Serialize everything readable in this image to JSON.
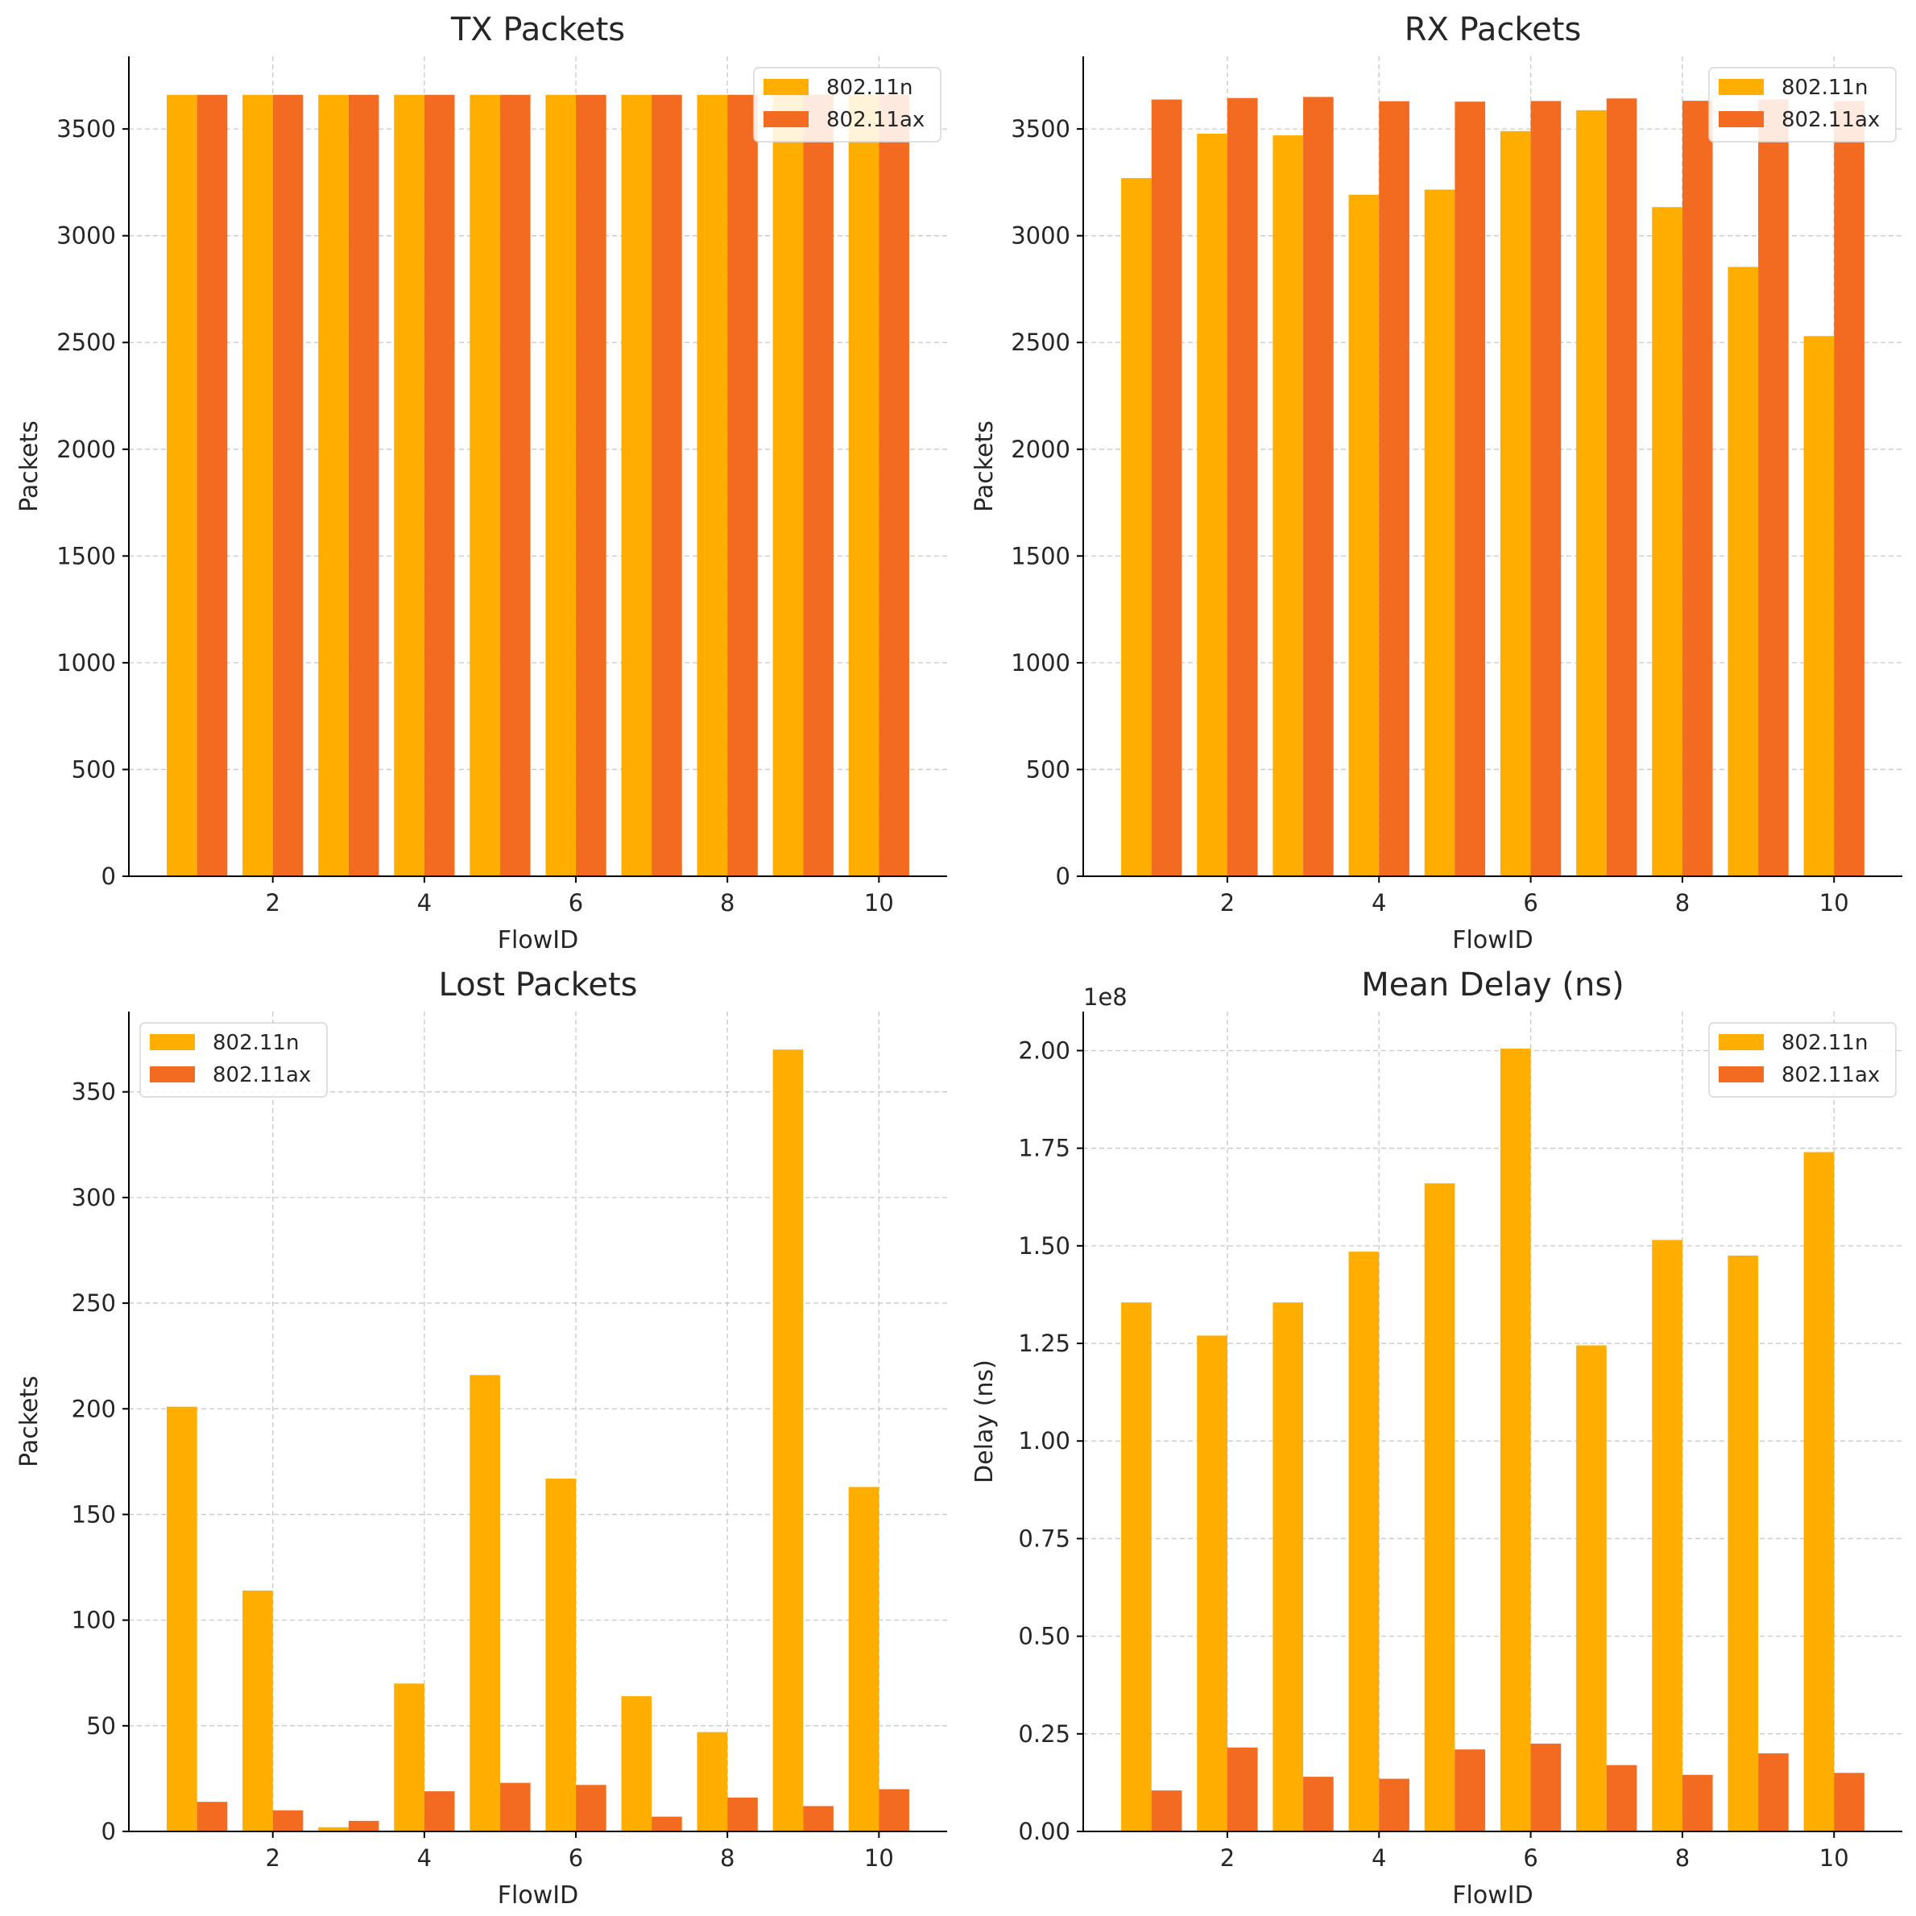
{
  "chart_data": [
    {
      "type": "bar",
      "title": "TX Packets",
      "xlabel": "FlowID",
      "ylabel": "Packets",
      "offset_label": "",
      "x": [
        1,
        2,
        3,
        4,
        5,
        6,
        7,
        8,
        9,
        10
      ],
      "xticks": [
        2,
        4,
        6,
        8,
        10
      ],
      "xlim": [
        0.1,
        10.9
      ],
      "ylim": [
        0,
        3840
      ],
      "yticks": [
        0,
        500,
        1000,
        1500,
        2000,
        2500,
        3000,
        3500
      ],
      "ytick_labels": [
        "0",
        "500",
        "1000",
        "1500",
        "2000",
        "2500",
        "3000",
        "3500"
      ],
      "grid": true,
      "legend": "upper right",
      "series": [
        {
          "name": "802.11n",
          "color": "#FFAE00",
          "values": [
            3660,
            3660,
            3660,
            3660,
            3660,
            3660,
            3660,
            3660,
            3660,
            3660
          ]
        },
        {
          "name": "802.11ax",
          "color": "#F26B21",
          "values": [
            3660,
            3660,
            3660,
            3660,
            3660,
            3660,
            3660,
            3660,
            3660,
            3660
          ]
        }
      ]
    },
    {
      "type": "bar",
      "title": "RX Packets",
      "xlabel": "FlowID",
      "ylabel": "Packets",
      "offset_label": "",
      "x": [
        1,
        2,
        3,
        4,
        5,
        6,
        7,
        8,
        9,
        10
      ],
      "xticks": [
        2,
        4,
        6,
        8,
        10
      ],
      "xlim": [
        0.1,
        10.9
      ],
      "ylim": [
        0,
        3840
      ],
      "yticks": [
        0,
        500,
        1000,
        1500,
        2000,
        2500,
        3000,
        3500
      ],
      "ytick_labels": [
        "0",
        "500",
        "1000",
        "1500",
        "2000",
        "2500",
        "3000",
        "3500"
      ],
      "grid": true,
      "legend": "upper right",
      "series": [
        {
          "name": "802.11n",
          "color": "#FFAE00",
          "values": [
            3270,
            3478,
            3470,
            3192,
            3216,
            3490,
            3588,
            3134,
            2854,
            2530
          ]
        },
        {
          "name": "802.11ax",
          "color": "#F26B21",
          "values": [
            3638,
            3645,
            3650,
            3630,
            3628,
            3631,
            3643,
            3632,
            3638,
            3630
          ]
        }
      ]
    },
    {
      "type": "bar",
      "title": "Lost Packets",
      "xlabel": "FlowID",
      "ylabel": "Packets",
      "offset_label": "",
      "x": [
        1,
        2,
        3,
        4,
        5,
        6,
        7,
        8,
        9,
        10
      ],
      "xticks": [
        2,
        4,
        6,
        8,
        10
      ],
      "xlim": [
        0.1,
        10.9
      ],
      "ylim": [
        0,
        388
      ],
      "yticks": [
        0,
        50,
        100,
        150,
        200,
        250,
        300,
        350
      ],
      "ytick_labels": [
        "0",
        "50",
        "100",
        "150",
        "200",
        "250",
        "300",
        "350"
      ],
      "grid": true,
      "legend": "upper left",
      "series": [
        {
          "name": "802.11n",
          "color": "#FFAE00",
          "values": [
            201,
            114,
            2,
            70,
            216,
            167,
            64,
            47,
            370,
            163
          ]
        },
        {
          "name": "802.11ax",
          "color": "#F26B21",
          "values": [
            14,
            10,
            5,
            19,
            23,
            22,
            7,
            16,
            12,
            20
          ]
        }
      ]
    },
    {
      "type": "bar",
      "title": "Mean Delay (ns)",
      "xlabel": "FlowID",
      "ylabel": "Delay (ns)",
      "offset_label": "1e8",
      "x": [
        1,
        2,
        3,
        4,
        5,
        6,
        7,
        8,
        9,
        10
      ],
      "xticks": [
        2,
        4,
        6,
        8,
        10
      ],
      "xlim": [
        0.1,
        10.9
      ],
      "ylim": [
        0,
        2.1
      ],
      "yticks": [
        0,
        0.25,
        0.5,
        0.75,
        1.0,
        1.25,
        1.5,
        1.75,
        2.0
      ],
      "ytick_labels": [
        "0.00",
        "0.25",
        "0.50",
        "0.75",
        "1.00",
        "1.25",
        "1.50",
        "1.75",
        "2.00"
      ],
      "grid": true,
      "legend": "upper right",
      "series": [
        {
          "name": "802.11n",
          "color": "#FFAE00",
          "values": [
            1.355,
            1.27,
            1.355,
            1.485,
            1.66,
            2.005,
            1.245,
            1.515,
            1.475,
            1.74
          ]
        },
        {
          "name": "802.11ax",
          "color": "#F26B21",
          "values": [
            0.105,
            0.215,
            0.14,
            0.135,
            0.21,
            0.225,
            0.17,
            0.145,
            0.2,
            0.15
          ]
        }
      ]
    }
  ]
}
